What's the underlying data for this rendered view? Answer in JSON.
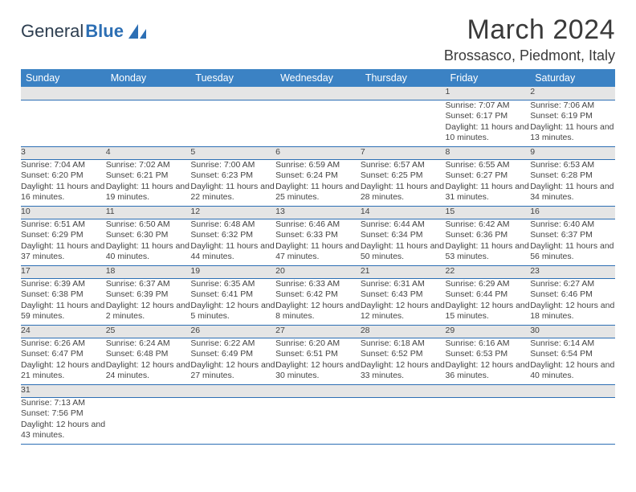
{
  "brand": {
    "part1": "General",
    "part2": "Blue",
    "accent_color": "#2d6fb4"
  },
  "title": "March 2024",
  "location": "Brossasco, Piedmont, Italy",
  "weekdays": [
    "Sunday",
    "Monday",
    "Tuesday",
    "Wednesday",
    "Thursday",
    "Friday",
    "Saturday"
  ],
  "colors": {
    "header_bg": "#3b82c4",
    "header_text": "#ffffff",
    "daynum_bg": "#e5e5e5",
    "cell_border": "#2d6fb4",
    "body_text": "#444"
  },
  "fonts": {
    "title_size_pt": 26,
    "location_size_pt": 14,
    "weekday_size_pt": 10,
    "cell_size_pt": 8
  },
  "weeks": [
    [
      {
        "n": "",
        "l1": "",
        "l2": "",
        "l3": ""
      },
      {
        "n": "",
        "l1": "",
        "l2": "",
        "l3": ""
      },
      {
        "n": "",
        "l1": "",
        "l2": "",
        "l3": ""
      },
      {
        "n": "",
        "l1": "",
        "l2": "",
        "l3": ""
      },
      {
        "n": "",
        "l1": "",
        "l2": "",
        "l3": ""
      },
      {
        "n": "1",
        "l1": "Sunrise: 7:07 AM",
        "l2": "Sunset: 6:17 PM",
        "l3": "Daylight: 11 hours and 10 minutes."
      },
      {
        "n": "2",
        "l1": "Sunrise: 7:06 AM",
        "l2": "Sunset: 6:19 PM",
        "l3": "Daylight: 11 hours and 13 minutes."
      }
    ],
    [
      {
        "n": "3",
        "l1": "Sunrise: 7:04 AM",
        "l2": "Sunset: 6:20 PM",
        "l3": "Daylight: 11 hours and 16 minutes."
      },
      {
        "n": "4",
        "l1": "Sunrise: 7:02 AM",
        "l2": "Sunset: 6:21 PM",
        "l3": "Daylight: 11 hours and 19 minutes."
      },
      {
        "n": "5",
        "l1": "Sunrise: 7:00 AM",
        "l2": "Sunset: 6:23 PM",
        "l3": "Daylight: 11 hours and 22 minutes."
      },
      {
        "n": "6",
        "l1": "Sunrise: 6:59 AM",
        "l2": "Sunset: 6:24 PM",
        "l3": "Daylight: 11 hours and 25 minutes."
      },
      {
        "n": "7",
        "l1": "Sunrise: 6:57 AM",
        "l2": "Sunset: 6:25 PM",
        "l3": "Daylight: 11 hours and 28 minutes."
      },
      {
        "n": "8",
        "l1": "Sunrise: 6:55 AM",
        "l2": "Sunset: 6:27 PM",
        "l3": "Daylight: 11 hours and 31 minutes."
      },
      {
        "n": "9",
        "l1": "Sunrise: 6:53 AM",
        "l2": "Sunset: 6:28 PM",
        "l3": "Daylight: 11 hours and 34 minutes."
      }
    ],
    [
      {
        "n": "10",
        "l1": "Sunrise: 6:51 AM",
        "l2": "Sunset: 6:29 PM",
        "l3": "Daylight: 11 hours and 37 minutes."
      },
      {
        "n": "11",
        "l1": "Sunrise: 6:50 AM",
        "l2": "Sunset: 6:30 PM",
        "l3": "Daylight: 11 hours and 40 minutes."
      },
      {
        "n": "12",
        "l1": "Sunrise: 6:48 AM",
        "l2": "Sunset: 6:32 PM",
        "l3": "Daylight: 11 hours and 44 minutes."
      },
      {
        "n": "13",
        "l1": "Sunrise: 6:46 AM",
        "l2": "Sunset: 6:33 PM",
        "l3": "Daylight: 11 hours and 47 minutes."
      },
      {
        "n": "14",
        "l1": "Sunrise: 6:44 AM",
        "l2": "Sunset: 6:34 PM",
        "l3": "Daylight: 11 hours and 50 minutes."
      },
      {
        "n": "15",
        "l1": "Sunrise: 6:42 AM",
        "l2": "Sunset: 6:36 PM",
        "l3": "Daylight: 11 hours and 53 minutes."
      },
      {
        "n": "16",
        "l1": "Sunrise: 6:40 AM",
        "l2": "Sunset: 6:37 PM",
        "l3": "Daylight: 11 hours and 56 minutes."
      }
    ],
    [
      {
        "n": "17",
        "l1": "Sunrise: 6:39 AM",
        "l2": "Sunset: 6:38 PM",
        "l3": "Daylight: 11 hours and 59 minutes."
      },
      {
        "n": "18",
        "l1": "Sunrise: 6:37 AM",
        "l2": "Sunset: 6:39 PM",
        "l3": "Daylight: 12 hours and 2 minutes."
      },
      {
        "n": "19",
        "l1": "Sunrise: 6:35 AM",
        "l2": "Sunset: 6:41 PM",
        "l3": "Daylight: 12 hours and 5 minutes."
      },
      {
        "n": "20",
        "l1": "Sunrise: 6:33 AM",
        "l2": "Sunset: 6:42 PM",
        "l3": "Daylight: 12 hours and 8 minutes."
      },
      {
        "n": "21",
        "l1": "Sunrise: 6:31 AM",
        "l2": "Sunset: 6:43 PM",
        "l3": "Daylight: 12 hours and 12 minutes."
      },
      {
        "n": "22",
        "l1": "Sunrise: 6:29 AM",
        "l2": "Sunset: 6:44 PM",
        "l3": "Daylight: 12 hours and 15 minutes."
      },
      {
        "n": "23",
        "l1": "Sunrise: 6:27 AM",
        "l2": "Sunset: 6:46 PM",
        "l3": "Daylight: 12 hours and 18 minutes."
      }
    ],
    [
      {
        "n": "24",
        "l1": "Sunrise: 6:26 AM",
        "l2": "Sunset: 6:47 PM",
        "l3": "Daylight: 12 hours and 21 minutes."
      },
      {
        "n": "25",
        "l1": "Sunrise: 6:24 AM",
        "l2": "Sunset: 6:48 PM",
        "l3": "Daylight: 12 hours and 24 minutes."
      },
      {
        "n": "26",
        "l1": "Sunrise: 6:22 AM",
        "l2": "Sunset: 6:49 PM",
        "l3": "Daylight: 12 hours and 27 minutes."
      },
      {
        "n": "27",
        "l1": "Sunrise: 6:20 AM",
        "l2": "Sunset: 6:51 PM",
        "l3": "Daylight: 12 hours and 30 minutes."
      },
      {
        "n": "28",
        "l1": "Sunrise: 6:18 AM",
        "l2": "Sunset: 6:52 PM",
        "l3": "Daylight: 12 hours and 33 minutes."
      },
      {
        "n": "29",
        "l1": "Sunrise: 6:16 AM",
        "l2": "Sunset: 6:53 PM",
        "l3": "Daylight: 12 hours and 36 minutes."
      },
      {
        "n": "30",
        "l1": "Sunrise: 6:14 AM",
        "l2": "Sunset: 6:54 PM",
        "l3": "Daylight: 12 hours and 40 minutes."
      }
    ],
    [
      {
        "n": "31",
        "l1": "Sunrise: 7:13 AM",
        "l2": "Sunset: 7:56 PM",
        "l3": "Daylight: 12 hours and 43 minutes."
      },
      {
        "n": "",
        "l1": "",
        "l2": "",
        "l3": ""
      },
      {
        "n": "",
        "l1": "",
        "l2": "",
        "l3": ""
      },
      {
        "n": "",
        "l1": "",
        "l2": "",
        "l3": ""
      },
      {
        "n": "",
        "l1": "",
        "l2": "",
        "l3": ""
      },
      {
        "n": "",
        "l1": "",
        "l2": "",
        "l3": ""
      },
      {
        "n": "",
        "l1": "",
        "l2": "",
        "l3": ""
      }
    ]
  ]
}
